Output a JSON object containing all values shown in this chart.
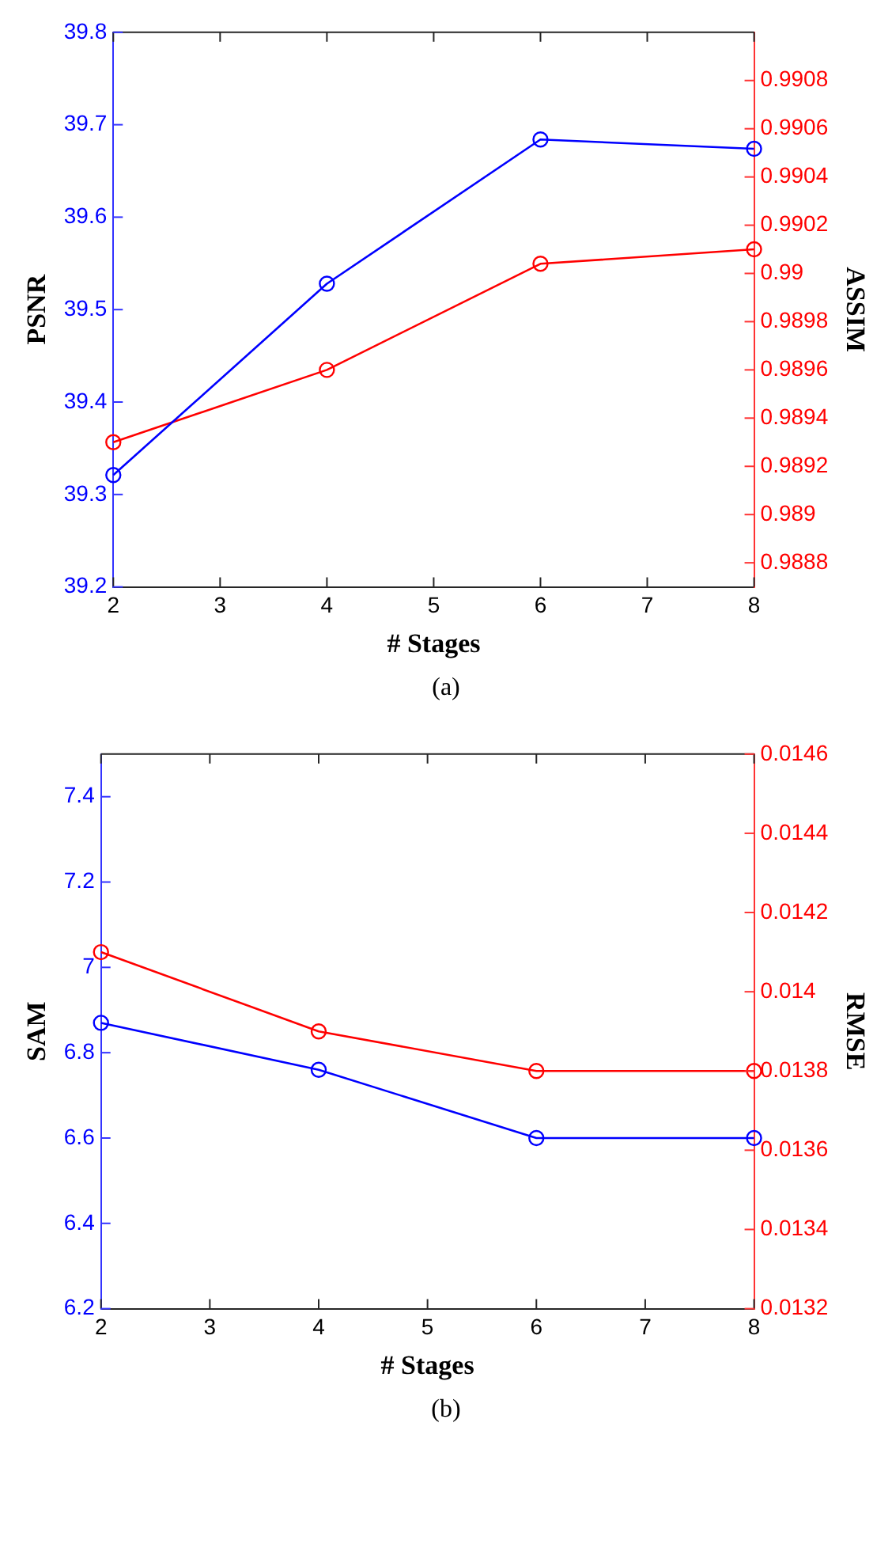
{
  "chart_data": [
    {
      "type": "line",
      "x": [
        2,
        4,
        6,
        8
      ],
      "xlabel": "# Stages",
      "ylabel": "PSNR",
      "y2label": "ASSIM",
      "marker": "circle",
      "annotations": [
        "(a)"
      ],
      "xlim": [
        2,
        8
      ],
      "xticks": [
        2,
        3,
        4,
        5,
        6,
        7,
        8
      ],
      "ylim": [
        39.2,
        39.8
      ],
      "yticks": [
        39.2,
        39.3,
        39.4,
        39.5,
        39.6,
        39.7,
        39.8
      ],
      "y2lim": [
        0.9887,
        0.991
      ],
      "y2ticks": [
        0.9888,
        0.989,
        0.9892,
        0.9894,
        0.9896,
        0.9898,
        0.99,
        0.9902,
        0.9904,
        0.9906,
        0.9908
      ],
      "series": [
        {
          "color": "#0000ff",
          "values": [
            39.321,
            39.528,
            39.684,
            39.674
          ]
        },
        {
          "color": "#ff0000",
          "axis": "y2",
          "values": [
            0.9893,
            0.9896,
            0.99004,
            0.9901
          ]
        }
      ]
    },
    {
      "type": "line",
      "x": [
        2,
        4,
        6,
        8
      ],
      "xlabel": "# Stages",
      "ylabel": "SAM",
      "y2label": "RMSE",
      "marker": "circle",
      "annotations": [
        "(b)"
      ],
      "xlim": [
        2,
        8
      ],
      "xticks": [
        2,
        3,
        4,
        5,
        6,
        7,
        8
      ],
      "ylim": [
        6.2,
        7.5
      ],
      "yticks": [
        6.2,
        6.4,
        6.6,
        6.8,
        7,
        7.2,
        7.4
      ],
      "y2lim": [
        0.0132,
        0.0146
      ],
      "y2ticks": [
        0.0132,
        0.0134,
        0.0136,
        0.0138,
        0.014,
        0.0142,
        0.0144,
        0.0146
      ],
      "series": [
        {
          "color": "#0000ff",
          "values": [
            6.87,
            6.76,
            6.6,
            6.6
          ]
        },
        {
          "color": "#ff0000",
          "axis": "y2",
          "values": [
            0.0141,
            0.0139,
            0.0138,
            0.0138
          ]
        }
      ]
    }
  ]
}
